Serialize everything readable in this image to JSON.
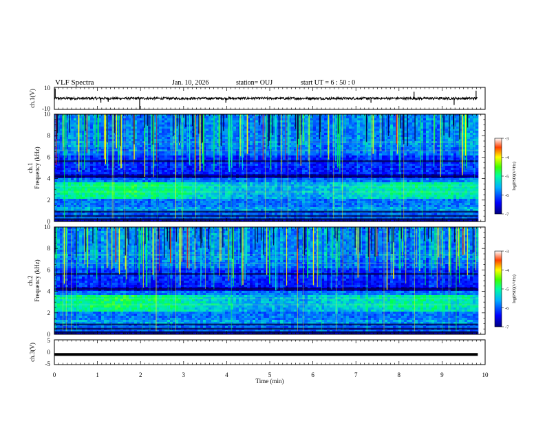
{
  "header": {
    "title": "VLF Spectra",
    "date": "Jan. 10, 2026",
    "station": "station= OUJ",
    "start": "start UT =  6 : 50 : 0"
  },
  "chart_data": [
    {
      "type": "line",
      "panel": "ch1-waveform",
      "ylabel": "ch.1(V)",
      "ylim": [
        -10,
        10
      ],
      "yticks": [
        "10",
        "-10"
      ],
      "baseline": 0
    },
    {
      "type": "heatmap",
      "panel": "ch1-spectrogram",
      "ylabel_top": "ch.1",
      "ylabel": "Frequency (kHz)",
      "ylim": [
        0,
        10
      ],
      "yticks": [
        "0",
        "2",
        "4",
        "6",
        "8",
        "10"
      ],
      "colorbar": {
        "label": "log(PSD)(V²/Hz)",
        "range": [
          -7,
          -3
        ],
        "ticks": [
          "-3",
          "-4",
          "-5",
          "-6",
          "-7"
        ]
      }
    },
    {
      "type": "heatmap",
      "panel": "ch2-spectrogram",
      "ylabel_top": "ch.2",
      "ylabel": "Frequency (kHz)",
      "ylim": [
        0,
        10
      ],
      "yticks": [
        "0",
        "2",
        "4",
        "6",
        "8",
        "10"
      ],
      "colorbar": {
        "label": "log(PSD)(V²/Hz)",
        "range": [
          -7,
          -3
        ],
        "ticks": [
          "-3",
          "-4",
          "-5",
          "-6",
          "-7"
        ]
      }
    },
    {
      "type": "line",
      "panel": "ch3-waveform",
      "ylabel": "ch.3(V)",
      "ylim": [
        -5,
        5
      ],
      "yticks": [
        "5",
        "0",
        "-5"
      ],
      "level": -0.9
    }
  ],
  "xaxis": {
    "label": "Time (min)",
    "range": [
      0,
      10
    ],
    "data_end": 9.83,
    "ticks": [
      "0",
      "1",
      "2",
      "3",
      "4",
      "5",
      "6",
      "7",
      "8",
      "9",
      "10"
    ]
  },
  "colors": {
    "background": "#00008f",
    "band": "#00e5c8",
    "accent": "#00ff40",
    "burst": "#ffff00",
    "strong": "#ff2000",
    "ink": "#000000"
  }
}
